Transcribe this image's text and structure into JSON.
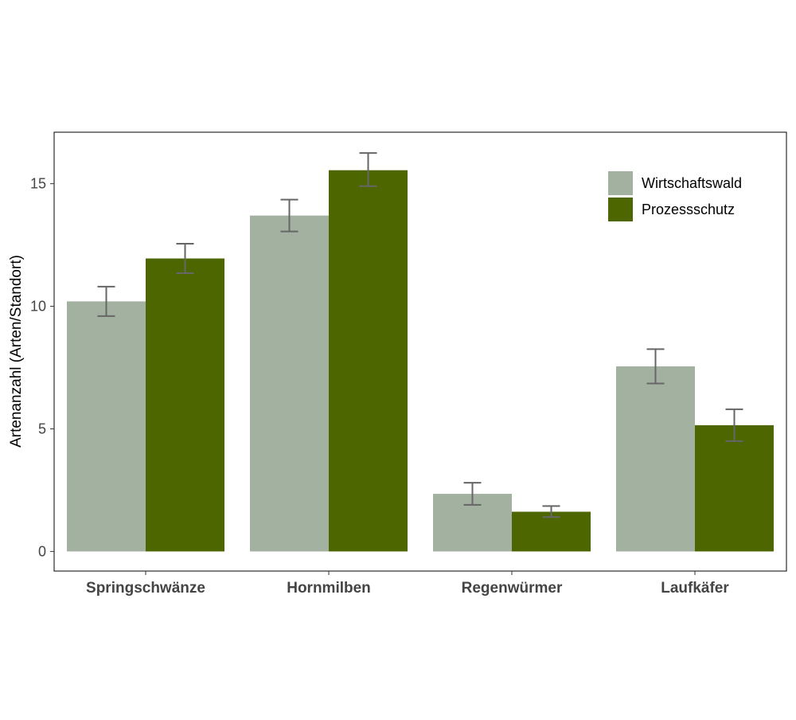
{
  "chart_data": {
    "type": "bar",
    "categories": [
      "Springschwänze",
      "Hornmilben",
      "Regenwürmer",
      "Laufkäfer"
    ],
    "series": [
      {
        "name": "Wirtschaftswald",
        "color": "#a3b1a0",
        "values": [
          10.2,
          13.7,
          2.35,
          7.55
        ],
        "error_low": [
          9.6,
          13.05,
          1.9,
          6.85
        ],
        "error_high": [
          10.8,
          14.35,
          2.8,
          8.25
        ]
      },
      {
        "name": "Prozessschutz",
        "color": "#4d6600",
        "values": [
          11.95,
          15.55,
          1.62,
          5.15
        ],
        "error_low": [
          11.35,
          14.9,
          1.4,
          4.5
        ],
        "error_high": [
          12.55,
          16.25,
          1.85,
          5.8
        ]
      }
    ],
    "ylabel": "Artenanzahl (Arten/Standort)",
    "xlabel": "",
    "ylim": [
      -0.8,
      17.1
    ],
    "yticks": [
      0,
      5,
      10,
      15
    ],
    "grid": false,
    "legend_position": "top-right",
    "error_bar_color": "#666666"
  }
}
